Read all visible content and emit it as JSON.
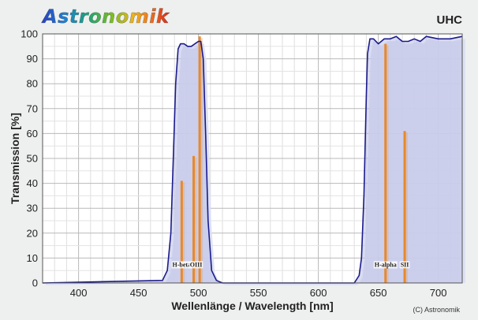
{
  "brand": {
    "logo_text": "Astronomik",
    "copyright": "(C) Astronomik"
  },
  "chart_data": {
    "type": "line",
    "title": "UHC",
    "xlabel": "Wellenlänge / Wavelength [nm]",
    "ylabel": "Transmission [%]",
    "xlim": [
      370,
      720
    ],
    "ylim": [
      0,
      100
    ],
    "xticks": [
      400,
      450,
      500,
      550,
      600,
      650,
      700
    ],
    "yticks": [
      0,
      10,
      20,
      30,
      40,
      50,
      60,
      70,
      80,
      90,
      100
    ],
    "grid": true,
    "colors": {
      "curve": "#1a1a8c",
      "fill": "#bbbfe6",
      "shadow": "#dcdff2",
      "emission": "#e8892b"
    },
    "series": [
      {
        "name": "UHC transmission",
        "x": [
          370,
          470,
          474,
          477,
          479,
          481,
          483,
          485,
          488,
          491,
          494,
          497,
          500,
          502,
          504,
          506,
          508,
          511,
          515,
          520,
          630,
          634,
          636,
          638,
          640,
          641,
          643,
          646,
          650,
          655,
          660,
          665,
          670,
          675,
          680,
          685,
          690,
          700,
          710,
          720
        ],
        "y": [
          0,
          1,
          5,
          20,
          50,
          80,
          94,
          96,
          96,
          95,
          95,
          96,
          97,
          97,
          90,
          60,
          25,
          5,
          1,
          0,
          0,
          3,
          10,
          35,
          75,
          92,
          98,
          98,
          96,
          98,
          98,
          99,
          97,
          97,
          98,
          97,
          99,
          98,
          98,
          99
        ]
      }
    ],
    "emission_lines": [
      {
        "name": "H-beta",
        "wavelength": 486,
        "value": 41
      },
      {
        "name": "OIII",
        "wavelength": 496,
        "value": 51
      },
      {
        "name": "OIII",
        "wavelength": 501,
        "value": 99
      },
      {
        "name": "H-alpha",
        "wavelength": 656,
        "value": 96
      },
      {
        "name": "SII",
        "wavelength": 672,
        "value": 61
      }
    ],
    "annotations": [
      {
        "text": "H-beta",
        "at": 486
      },
      {
        "text": "OIII",
        "at": 498
      },
      {
        "text": "H-alpha",
        "at": 656
      },
      {
        "text": "SII",
        "at": 672
      }
    ]
  }
}
